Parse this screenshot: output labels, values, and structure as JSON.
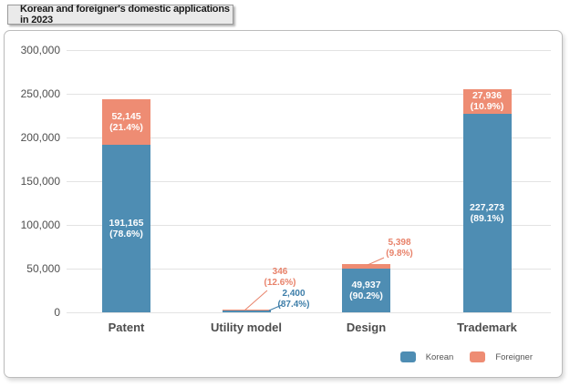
{
  "chart_data": {
    "type": "bar",
    "stacked": true,
    "title": "Korean and foreigner's domestic applications in 2023",
    "categories": [
      "Patent",
      "Utility model",
      "Design",
      "Trademark"
    ],
    "series": [
      {
        "name": "Korean",
        "color": "#4E8DB3",
        "values": [
          191165,
          2400,
          49937,
          227273
        ],
        "percents": [
          78.6,
          87.4,
          90.2,
          89.1
        ]
      },
      {
        "name": "Foreigner",
        "color": "#EE8C73",
        "values": [
          52145,
          346,
          5398,
          27936
        ],
        "percents": [
          21.4,
          12.6,
          9.8,
          10.9
        ]
      }
    ],
    "totals": [
      243310,
      2746,
      55335,
      255209
    ],
    "y_ticks": [
      0,
      50000,
      100000,
      150000,
      200000,
      250000,
      300000
    ],
    "y_tick_labels": [
      "0",
      "50,000",
      "100,000",
      "150,000",
      "200,000",
      "250,000",
      "300,000"
    ],
    "ylim": [
      0,
      300000
    ],
    "grid": true,
    "legend_position": "bottom-right",
    "legend": [
      "Korean",
      "Foreigner"
    ],
    "colors": {
      "korean": "#4E8DB3",
      "foreigner": "#EE8C73",
      "korean_text": "#3E7EA9",
      "foreigner_text": "#E8826A"
    }
  }
}
